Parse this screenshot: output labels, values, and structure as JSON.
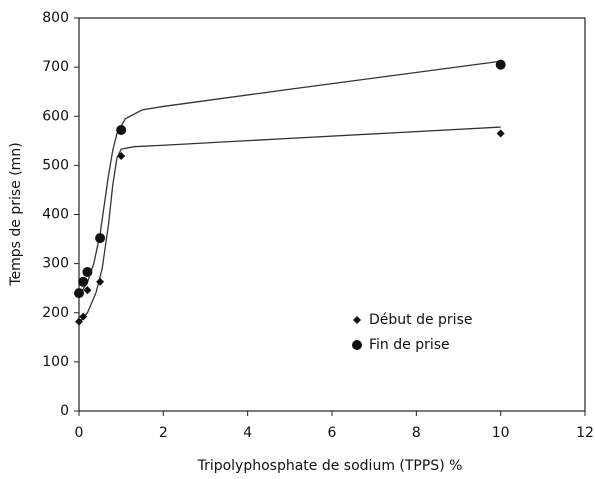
{
  "chart_data": {
    "type": "scatter",
    "x_label": "Tripolyphosphate de sodium (TPPS) %",
    "y_label": "Temps de prise (mn)",
    "xlim": [
      0,
      12
    ],
    "xticks": [
      0,
      2,
      4,
      6,
      8,
      10,
      12
    ],
    "ylim": [
      0,
      800
    ],
    "yticks": [
      0,
      100,
      200,
      300,
      400,
      500,
      600,
      700,
      800
    ],
    "legend": "lower right",
    "series": [
      {
        "name": "Début de prise",
        "color": "#111111",
        "marker": "diamond",
        "x": [
          0,
          0.1,
          0.2,
          0.5,
          1,
          10
        ],
        "values": [
          182,
          192,
          246,
          263,
          519,
          565
        ],
        "fit": {
          "x": [
            0,
            0.2,
            0.4,
            0.55,
            0.7,
            0.8,
            0.9,
            1,
            1.3,
            2,
            5,
            10
          ],
          "values": [
            180,
            200,
            240,
            290,
            380,
            460,
            515,
            533,
            538,
            541,
            555,
            578
          ]
        }
      },
      {
        "name": "Fin de prise",
        "color": "#111111",
        "marker": "circle",
        "x": [
          0,
          0.1,
          0.2,
          0.5,
          1,
          10
        ],
        "values": [
          240,
          263,
          283,
          352,
          572,
          705
        ],
        "fit": {
          "x": [
            0,
            0.2,
            0.35,
            0.5,
            0.6,
            0.7,
            0.8,
            0.9,
            1.1,
            1.5,
            2,
            5,
            10
          ],
          "values": [
            235,
            262,
            300,
            360,
            420,
            480,
            530,
            565,
            595,
            613,
            620,
            655,
            712
          ]
        }
      }
    ]
  }
}
